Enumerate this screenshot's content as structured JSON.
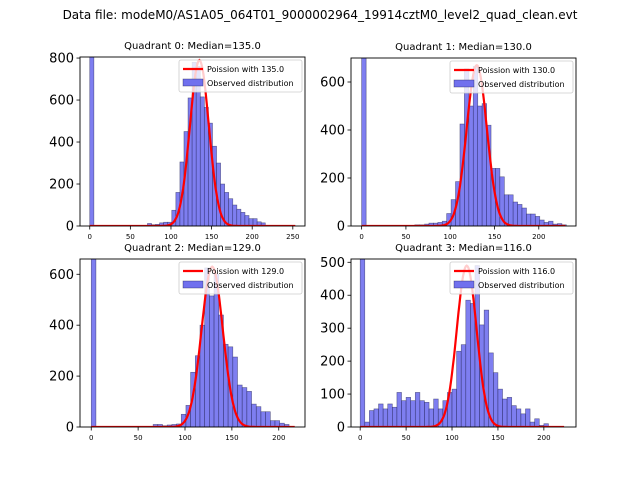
{
  "suptitle": "Data file: modeM0/AS1A05_064T01_9000002964_19914cztM0_level2_quad_clean.evt",
  "colors": {
    "bar_fill": "#7070ee",
    "bar_edge": "#1a1a4a",
    "poisson_line": "#ff0000",
    "axes": "#000000"
  },
  "chart_data": [
    {
      "type": "bar",
      "title": "Quadrant 0: Median=135.0",
      "median": 135.0,
      "xlim": [
        -12,
        265
      ],
      "ylim": [
        0,
        805
      ],
      "xticks": [
        0,
        50,
        100,
        150,
        200,
        250
      ],
      "yticks": [
        0,
        200,
        400,
        600,
        800
      ],
      "legend": [
        "Poission with 135.0",
        "Observed distribution"
      ],
      "legend_position": "upper right",
      "bin_width": 5.1,
      "bins": [
        [
          0,
          2000
        ],
        [
          71,
          12
        ],
        [
          76,
          6
        ],
        [
          81,
          8
        ],
        [
          86,
          15
        ],
        [
          91,
          18
        ],
        [
          96,
          18
        ],
        [
          101,
          75
        ],
        [
          106,
          160
        ],
        [
          111,
          305
        ],
        [
          116,
          450
        ],
        [
          121,
          610
        ],
        [
          126,
          780
        ],
        [
          131,
          760
        ],
        [
          136,
          615
        ],
        [
          141,
          565
        ],
        [
          146,
          490
        ],
        [
          151,
          380
        ],
        [
          156,
          300
        ],
        [
          161,
          200
        ],
        [
          166,
          160
        ],
        [
          171,
          130
        ],
        [
          176,
          100
        ],
        [
          181,
          80
        ],
        [
          186,
          65
        ],
        [
          191,
          50
        ],
        [
          196,
          35
        ],
        [
          201,
          35
        ],
        [
          206,
          20
        ],
        [
          211,
          15
        ]
      ],
      "poisson": {
        "mean": 135.0,
        "peak": 790,
        "x_range": [
          0,
          253
        ]
      }
    },
    {
      "type": "bar",
      "title": "Quadrant 1: Median=130.0",
      "median": 130.0,
      "xlim": [
        -12,
        242
      ],
      "ylim": [
        0,
        700
      ],
      "xticks": [
        0,
        50,
        100,
        150,
        200
      ],
      "yticks": [
        0,
        200,
        400,
        600
      ],
      "legend": [
        "Poission with 130.0",
        "Observed distribution"
      ],
      "legend_position": "upper right",
      "bin_width": 5.1,
      "bins": [
        [
          0,
          2000
        ],
        [
          60,
          5
        ],
        [
          65,
          5
        ],
        [
          71,
          8
        ],
        [
          76,
          12
        ],
        [
          81,
          12
        ],
        [
          86,
          15
        ],
        [
          91,
          20
        ],
        [
          96,
          52
        ],
        [
          101,
          110
        ],
        [
          106,
          185
        ],
        [
          111,
          425
        ],
        [
          116,
          655
        ],
        [
          121,
          500
        ],
        [
          126,
          665
        ],
        [
          131,
          500
        ],
        [
          136,
          510
        ],
        [
          141,
          420
        ],
        [
          146,
          240
        ],
        [
          151,
          240
        ],
        [
          156,
          205
        ],
        [
          161,
          130
        ],
        [
          166,
          130
        ],
        [
          171,
          100
        ],
        [
          176,
          90
        ],
        [
          181,
          75
        ],
        [
          186,
          50
        ],
        [
          191,
          50
        ],
        [
          196,
          40
        ],
        [
          201,
          25
        ],
        [
          206,
          15
        ],
        [
          211,
          20
        ],
        [
          216,
          8
        ],
        [
          221,
          10
        ],
        [
          226,
          5
        ]
      ],
      "poisson": {
        "mean": 130.0,
        "peak": 670,
        "x_range": [
          0,
          230
        ]
      }
    },
    {
      "type": "bar",
      "title": "Quadrant 2: Median=129.0",
      "median": 129.0,
      "xlim": [
        -12,
        228
      ],
      "ylim": [
        0,
        660
      ],
      "xticks": [
        0,
        50,
        100,
        150,
        200
      ],
      "yticks": [
        0,
        200,
        400,
        600
      ],
      "legend": [
        "Poission with 129.0",
        "Observed distribution"
      ],
      "legend_position": "upper right",
      "bin_width": 5.0,
      "bins": [
        [
          0,
          2000
        ],
        [
          66,
          10
        ],
        [
          71,
          10
        ],
        [
          76,
          5
        ],
        [
          81,
          8
        ],
        [
          86,
          10
        ],
        [
          91,
          12
        ],
        [
          96,
          50
        ],
        [
          101,
          85
        ],
        [
          106,
          215
        ],
        [
          111,
          280
        ],
        [
          116,
          400
        ],
        [
          121,
          625
        ],
        [
          126,
          515
        ],
        [
          131,
          600
        ],
        [
          136,
          440
        ],
        [
          141,
          325
        ],
        [
          146,
          315
        ],
        [
          151,
          275
        ],
        [
          156,
          165
        ],
        [
          161,
          155
        ],
        [
          166,
          140
        ],
        [
          171,
          90
        ],
        [
          176,
          80
        ],
        [
          181,
          60
        ],
        [
          186,
          60
        ],
        [
          191,
          25
        ],
        [
          196,
          25
        ],
        [
          201,
          15
        ],
        [
          206,
          10
        ]
      ],
      "poisson": {
        "mean": 129.0,
        "peak": 630,
        "x_range": [
          0,
          217
        ]
      }
    },
    {
      "type": "bar",
      "title": "Quadrant 3: Median=116.0",
      "median": 116.0,
      "xlim": [
        -10,
        235
      ],
      "ylim": [
        0,
        510
      ],
      "xticks": [
        0,
        50,
        100,
        150,
        200
      ],
      "yticks": [
        0,
        100,
        200,
        300,
        400,
        500
      ],
      "legend": [
        "Poission with 116.0",
        "Observed distribution"
      ],
      "legend_position": "upper right",
      "bin_width": 5.0,
      "bins": [
        [
          0,
          2000
        ],
        [
          5,
          15
        ],
        [
          10,
          50
        ],
        [
          15,
          55
        ],
        [
          20,
          70
        ],
        [
          25,
          55
        ],
        [
          30,
          70
        ],
        [
          35,
          60
        ],
        [
          40,
          105
        ],
        [
          45,
          80
        ],
        [
          50,
          90
        ],
        [
          55,
          80
        ],
        [
          60,
          105
        ],
        [
          65,
          80
        ],
        [
          70,
          75
        ],
        [
          75,
          55
        ],
        [
          80,
          85
        ],
        [
          85,
          55
        ],
        [
          90,
          80
        ],
        [
          95,
          105
        ],
        [
          100,
          115
        ],
        [
          105,
          230
        ],
        [
          110,
          250
        ],
        [
          115,
          385
        ],
        [
          120,
          375
        ],
        [
          125,
          490
        ],
        [
          130,
          310
        ],
        [
          135,
          355
        ],
        [
          140,
          225
        ],
        [
          145,
          165
        ],
        [
          150,
          115
        ],
        [
          155,
          85
        ],
        [
          160,
          90
        ],
        [
          165,
          65
        ],
        [
          170,
          55
        ],
        [
          175,
          40
        ],
        [
          180,
          55
        ],
        [
          185,
          15
        ],
        [
          190,
          25
        ],
        [
          195,
          5
        ],
        [
          200,
          10
        ]
      ],
      "poisson": {
        "mean": 116.0,
        "peak": 490,
        "x_range": [
          0,
          222
        ]
      }
    }
  ]
}
